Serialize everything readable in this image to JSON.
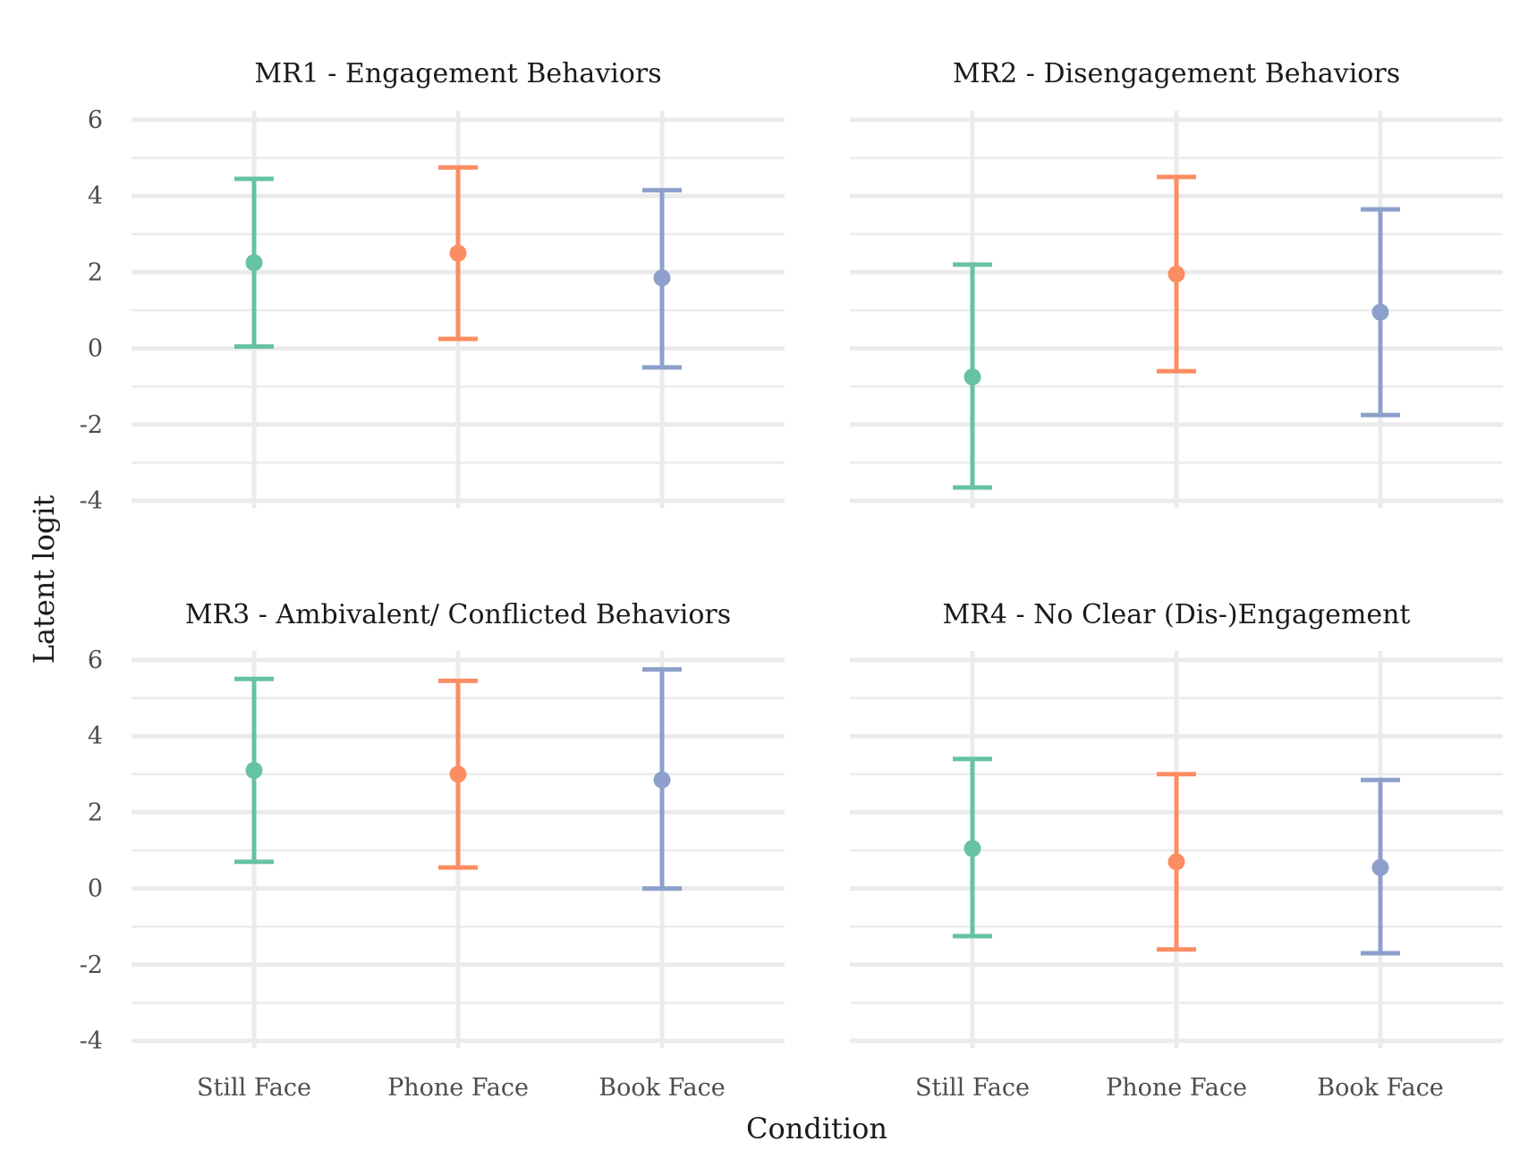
{
  "colors": {
    "Still Face": "#66c2a5",
    "Phone Face": "#fc8d62",
    "Book Face": "#8da0cb",
    "grid": "#ebebeb"
  },
  "chart_data": {
    "type": "errorbar",
    "xlabel": "Condition",
    "ylabel": "Latent logit",
    "categories": [
      "Still Face",
      "Phone Face",
      "Book Face"
    ],
    "ylim": [
      -4,
      6
    ],
    "yticks": [
      "-4",
      "-2",
      "0",
      "2",
      "4",
      "6"
    ],
    "grid": true,
    "legend": "none",
    "panels": [
      {
        "title": "MR1 - Engagement Behaviors",
        "points": [
          {
            "category": "Still Face",
            "estimate": 2.25,
            "lower": 0.05,
            "upper": 4.45
          },
          {
            "category": "Phone Face",
            "estimate": 2.5,
            "lower": 0.25,
            "upper": 4.75
          },
          {
            "category": "Book Face",
            "estimate": 1.85,
            "lower": -0.5,
            "upper": 4.15
          }
        ]
      },
      {
        "title": "MR2 - Disengagement Behaviors",
        "points": [
          {
            "category": "Still Face",
            "estimate": -0.75,
            "lower": -3.65,
            "upper": 2.2
          },
          {
            "category": "Phone Face",
            "estimate": 1.95,
            "lower": -0.6,
            "upper": 4.5
          },
          {
            "category": "Book Face",
            "estimate": 0.95,
            "lower": -1.75,
            "upper": 3.65
          }
        ]
      },
      {
        "title": "MR3 - Ambivalent/ Conflicted Behaviors",
        "points": [
          {
            "category": "Still Face",
            "estimate": 3.1,
            "lower": 0.7,
            "upper": 5.5
          },
          {
            "category": "Phone Face",
            "estimate": 3.0,
            "lower": 0.55,
            "upper": 5.45
          },
          {
            "category": "Book Face",
            "estimate": 2.85,
            "lower": 0.0,
            "upper": 5.75
          }
        ]
      },
      {
        "title": "MR4 - No Clear (Dis-)Engagement",
        "points": [
          {
            "category": "Still Face",
            "estimate": 1.05,
            "lower": -1.25,
            "upper": 3.4
          },
          {
            "category": "Phone Face",
            "estimate": 0.7,
            "lower": -1.6,
            "upper": 3.0
          },
          {
            "category": "Book Face",
            "estimate": 0.55,
            "lower": -1.7,
            "upper": 2.85
          }
        ]
      }
    ]
  }
}
